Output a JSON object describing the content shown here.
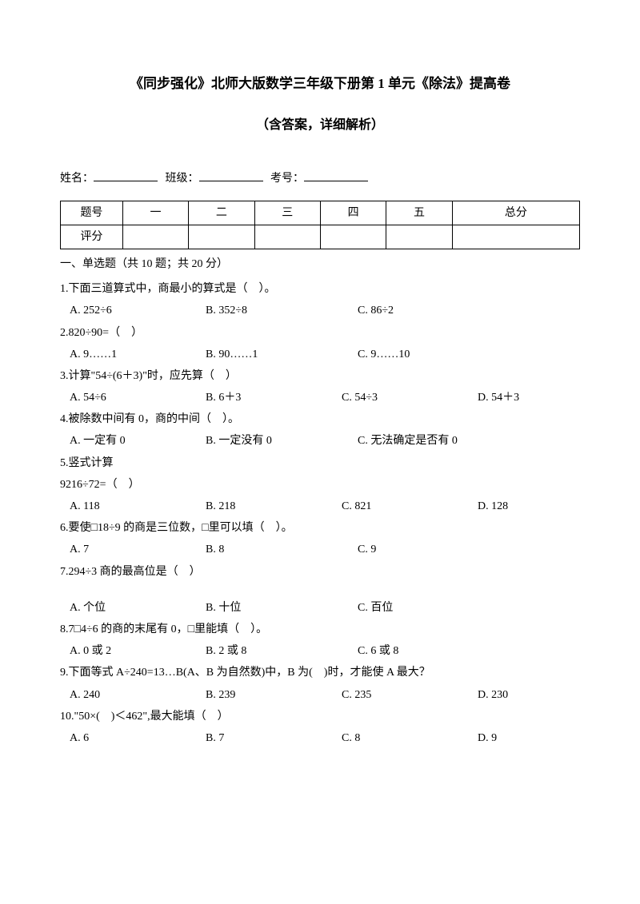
{
  "title": "《同步强化》北师大版数学三年级下册第 1 单元《除法》提高卷",
  "subtitle": "（含答案，详细解析）",
  "infoRow": {
    "nameLabel": "姓名：",
    "classLabel": "班级：",
    "idLabel": "考号："
  },
  "scoreTable": {
    "header": [
      "题号",
      "一",
      "二",
      "三",
      "四",
      "五",
      "总分"
    ],
    "rowLabel": "评分"
  },
  "sectionHeading": "一、单选题（共 10 题；共 20 分）",
  "questions": [
    {
      "num": "1",
      "text": ".下面三道算式中，商最小的算式是（　）。",
      "options": [
        "A. 252÷6",
        "B. 352÷8",
        "C. 86÷2"
      ],
      "layout": "three"
    },
    {
      "num": "2",
      "text": ".820÷90=（　）",
      "options": [
        "A. 9……1",
        "B. 90……1",
        "C. 9……10"
      ],
      "layout": "three"
    },
    {
      "num": "3",
      "text": ".计算\"54÷(6＋3)\"时，应先算（　）",
      "options": [
        "A. 54÷6",
        "B. 6＋3",
        "C. 54÷3",
        "D. 54＋3"
      ],
      "layout": "four"
    },
    {
      "num": "4",
      "text": ".被除数中间有 0，商的中间（　）。",
      "options": [
        "A. 一定有 0",
        "B. 一定没有 0",
        "C. 无法确定是否有 0"
      ],
      "layout": "three"
    },
    {
      "num": "5",
      "text": ".竖式计算",
      "extra": "9216÷72=（　）",
      "options": [
        "A. 118",
        "B. 218",
        "C. 821",
        "D. 128"
      ],
      "layout": "four"
    },
    {
      "num": "6",
      "text": ".要使□18÷9 的商是三位数，□里可以填（　）。",
      "options": [
        "A. 7",
        "B. 8",
        "C. 9"
      ],
      "layout": "three"
    },
    {
      "num": "7",
      "text": ".294÷3 商的最高位是（　）",
      "options": [
        "A. 个位",
        "B. 十位",
        "C. 百位"
      ],
      "layout": "three",
      "spacerBefore": true
    },
    {
      "num": "8",
      "text": ".7□4÷6 的商的末尾有 0，□里能填（　）。",
      "options": [
        "A. 0 或 2",
        "B. 2 或 8",
        "C. 6 或 8"
      ],
      "layout": "three"
    },
    {
      "num": "9",
      "text": ".下面等式 A÷240=13…B(A、B 为自然数)中，B 为(　)时，才能使 A 最大？",
      "options": [
        "A. 240",
        "B. 239",
        "C. 235",
        "D. 230"
      ],
      "layout": "four"
    },
    {
      "num": "10",
      "text": ".\"50×(　)＜462\",最大能填（　）",
      "options": [
        "A. 6",
        "B. 7",
        "C. 8",
        "D. 9"
      ],
      "layout": "four"
    }
  ]
}
